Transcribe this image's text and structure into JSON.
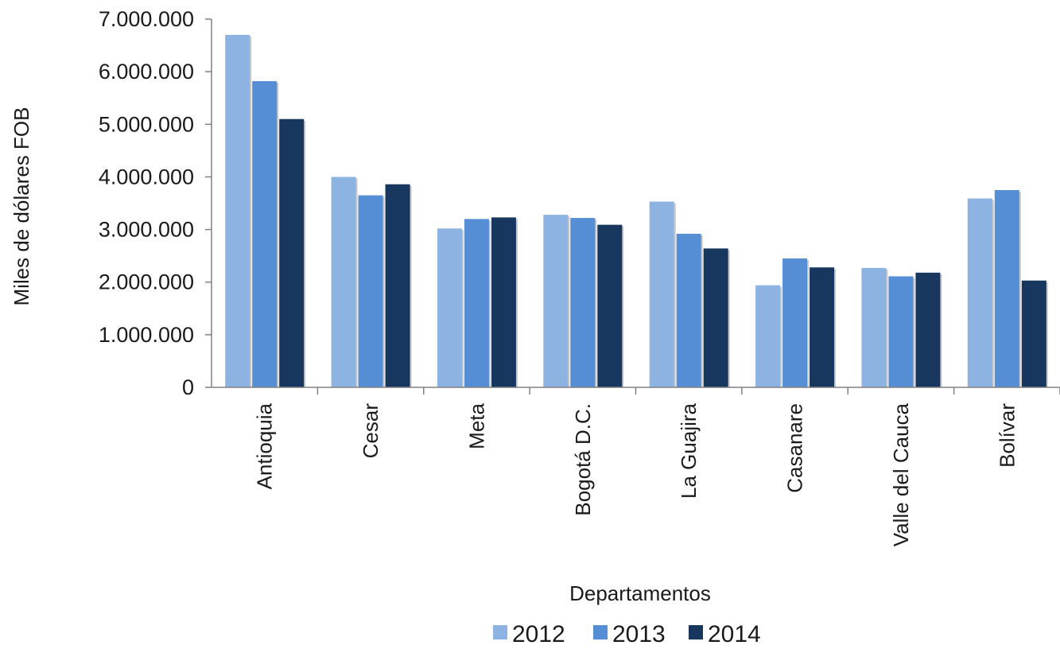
{
  "chart_data": {
    "type": "bar",
    "title": "",
    "xlabel": "Departamentos",
    "ylabel": "Miles de dólares FOB",
    "ylim": [
      0,
      7000000
    ],
    "yticks": [
      0,
      1000000,
      2000000,
      3000000,
      4000000,
      5000000,
      6000000,
      7000000
    ],
    "ytick_labels": [
      "0",
      "1.000.000",
      "2.000.000",
      "3.000.000",
      "4.000.000",
      "5.000.000",
      "6.000.000",
      "7.000.000"
    ],
    "categories": [
      "Antioquia",
      "Cesar",
      "Meta",
      "Bogotá D.C.",
      "La Guajira",
      "Casanare",
      "Valle del Cauca",
      "Bolívar"
    ],
    "series": [
      {
        "name": "2012",
        "color": "#8DB3E2",
        "values": [
          6700000,
          4000000,
          3020000,
          3280000,
          3530000,
          1940000,
          2270000,
          3590000
        ]
      },
      {
        "name": "2013",
        "color": "#558ED5",
        "values": [
          5820000,
          3650000,
          3200000,
          3220000,
          2920000,
          2450000,
          2110000,
          3750000
        ]
      },
      {
        "name": "2014",
        "color": "#17375E",
        "values": [
          5100000,
          3860000,
          3230000,
          3090000,
          2640000,
          2280000,
          2180000,
          2030000
        ]
      }
    ],
    "grid": false,
    "legend_position": "bottom"
  }
}
